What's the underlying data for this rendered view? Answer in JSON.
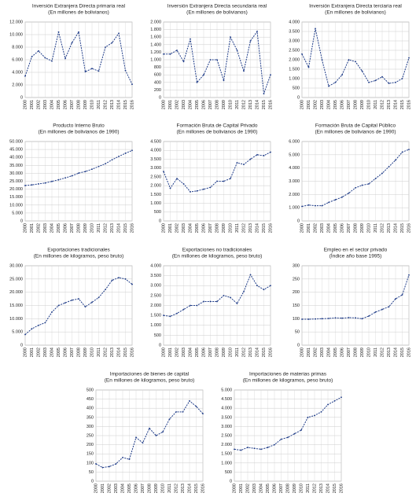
{
  "chart_data": [
    {
      "type": "line",
      "title": "Inversión Extranjera Directa primaria real",
      "subtitle": "(En millones de bolivianos)",
      "color": "#1f3c88",
      "grid": true,
      "x": [
        "2000",
        "2001",
        "2002",
        "2003",
        "2004",
        "2005",
        "2006",
        "2007",
        "2008",
        "2009",
        "2010",
        "2011",
        "2012",
        "2013",
        "2014",
        "2015",
        "2016"
      ],
      "values": [
        3400,
        6500,
        7400,
        6300,
        5800,
        10400,
        6200,
        8700,
        10400,
        4100,
        4600,
        4200,
        8000,
        8700,
        10200,
        4300,
        2100
      ],
      "ylim": [
        0,
        12000
      ],
      "yticks": [
        0,
        {
          "value": 2000,
          "label": "2.000"
        },
        {
          "value": 4000,
          "label": "4.000"
        },
        {
          "value": 6000,
          "label": "6.000"
        },
        {
          "value": 8000,
          "label": "8.000"
        },
        {
          "value": 10000,
          "label": "10.000"
        },
        {
          "value": 12000,
          "label": "12.000"
        }
      ]
    },
    {
      "type": "line",
      "title": "Inversión Extranjera Directa secundaria real",
      "subtitle": "(En millones de bolivianos)",
      "color": "#1f3c88",
      "grid": true,
      "x": [
        "2000",
        "2001",
        "2002",
        "2003",
        "2004",
        "2005",
        "2006",
        "2007",
        "2008",
        "2009",
        "2010",
        "2011",
        "2012",
        "2013",
        "2014",
        "2015",
        "2016"
      ],
      "values": [
        1150,
        1150,
        1250,
        950,
        1550,
        400,
        600,
        1000,
        1000,
        450,
        1600,
        1250,
        700,
        1500,
        1750,
        100,
        600
      ],
      "ylim": [
        0,
        2000
      ],
      "yticks": [
        0,
        200,
        400,
        600,
        800,
        {
          "value": 1000,
          "label": "1.000"
        },
        {
          "value": 1200,
          "label": "1.200"
        },
        {
          "value": 1400,
          "label": "1.400"
        },
        {
          "value": 1600,
          "label": "1.600"
        },
        {
          "value": 1800,
          "label": "1.800"
        },
        {
          "value": 2000,
          "label": "2.000"
        }
      ]
    },
    {
      "type": "line",
      "title": "Inversión Extranjera Directa terciaria real",
      "subtitle": "(En millones de bolivianos)",
      "color": "#1f3c88",
      "grid": true,
      "x": [
        "2000",
        "2001",
        "2002",
        "2003",
        "2004",
        "2005",
        "2006",
        "2007",
        "2008",
        "2009",
        "2010",
        "2011",
        "2012",
        "2013",
        "2014",
        "2015",
        "2016"
      ],
      "values": [
        2300,
        1600,
        3650,
        2000,
        600,
        800,
        1200,
        2000,
        1900,
        1400,
        800,
        900,
        1100,
        750,
        800,
        1000,
        2100
      ],
      "ylim": [
        0,
        4000
      ],
      "yticks": [
        0,
        500,
        {
          "value": 1000,
          "label": "1.000"
        },
        {
          "value": 1500,
          "label": "1.500"
        },
        {
          "value": 2000,
          "label": "2.000"
        },
        {
          "value": 2500,
          "label": "2.500"
        },
        {
          "value": 3000,
          "label": "3.000"
        },
        {
          "value": 3500,
          "label": "3.500"
        },
        {
          "value": 4000,
          "label": "4.000"
        }
      ]
    },
    {
      "type": "line",
      "title": "Producto Interno Bruto",
      "subtitle": "(En millones de bolivianos de 1990)",
      "color": "#1f3c88",
      "grid": true,
      "x": [
        "2000",
        "2001",
        "2002",
        "2003",
        "2004",
        "2005",
        "2006",
        "2007",
        "2008",
        "2009",
        "2010",
        "2011",
        "2012",
        "2013",
        "2014",
        "2015",
        "2016"
      ],
      "values": [
        22300,
        22700,
        23300,
        23900,
        24900,
        25900,
        27100,
        28400,
        30100,
        31100,
        32600,
        34300,
        36000,
        38500,
        40600,
        42600,
        44400
      ],
      "ylim": [
        0,
        50000
      ],
      "yticks": [
        0,
        {
          "value": 5000,
          "label": "5.000"
        },
        {
          "value": 10000,
          "label": "10.000"
        },
        {
          "value": 15000,
          "label": "15.000"
        },
        {
          "value": 20000,
          "label": "20.000"
        },
        {
          "value": 25000,
          "label": "25.000"
        },
        {
          "value": 30000,
          "label": "30.000"
        },
        {
          "value": 35000,
          "label": "35.000"
        },
        {
          "value": 40000,
          "label": "40.000"
        },
        {
          "value": 45000,
          "label": "45.000"
        },
        {
          "value": 50000,
          "label": "50.000"
        }
      ]
    },
    {
      "type": "line",
      "title": "Formación Bruta de Capital Privado",
      "subtitle": "(En millones de bolivianos de 1990)",
      "color": "#1f3c88",
      "grid": true,
      "x": [
        "2000",
        "2001",
        "2002",
        "2003",
        "2004",
        "2005",
        "2006",
        "2007",
        "2008",
        "2009",
        "2010",
        "2011",
        "2012",
        "2013",
        "2014",
        "2015",
        "2016"
      ],
      "values": [
        2800,
        1850,
        2400,
        2100,
        1650,
        1700,
        1800,
        1900,
        2250,
        2250,
        2400,
        3300,
        3200,
        3500,
        3750,
        3700,
        3900
      ],
      "ylim": [
        0,
        4500
      ],
      "yticks": [
        0,
        500,
        {
          "value": 1000,
          "label": "1.000"
        },
        {
          "value": 1500,
          "label": "1.500"
        },
        {
          "value": 2000,
          "label": "2.000"
        },
        {
          "value": 2500,
          "label": "2.500"
        },
        {
          "value": 3000,
          "label": "3.000"
        },
        {
          "value": 3500,
          "label": "3.500"
        },
        {
          "value": 4000,
          "label": "4.000"
        },
        {
          "value": 4500,
          "label": "4.500"
        }
      ]
    },
    {
      "type": "line",
      "title": "Formación Bruta de Capital Público",
      "subtitle": "(En millones de bolivianos de 1990)",
      "color": "#1f3c88",
      "grid": true,
      "x": [
        "2000",
        "2001",
        "2002",
        "2003",
        "2004",
        "2005",
        "2006",
        "2007",
        "2008",
        "2009",
        "2010",
        "2011",
        "2012",
        "2013",
        "2014",
        "2015",
        "2016"
      ],
      "values": [
        1100,
        1200,
        1150,
        1150,
        1400,
        1600,
        1800,
        2100,
        2500,
        2700,
        2800,
        3200,
        3600,
        4100,
        4600,
        5200,
        5400
      ],
      "ylim": [
        0,
        6000
      ],
      "yticks": [
        0,
        {
          "value": 1000,
          "label": "1.000"
        },
        {
          "value": 2000,
          "label": "2.000"
        },
        {
          "value": 3000,
          "label": "3.000"
        },
        {
          "value": 4000,
          "label": "4.000"
        },
        {
          "value": 5000,
          "label": "5.000"
        },
        {
          "value": 6000,
          "label": "6.000"
        }
      ]
    },
    {
      "type": "line",
      "title": "Exportaciones tradicionales",
      "subtitle": "(En millones de kilogramos, peso bruto)",
      "color": "#1f3c88",
      "grid": true,
      "x": [
        "2000",
        "2001",
        "2002",
        "2003",
        "2004",
        "2005",
        "2006",
        "2007",
        "2008",
        "2009",
        "2010",
        "2011",
        "2012",
        "2013",
        "2014",
        "2015",
        "2016"
      ],
      "values": [
        4000,
        6200,
        7500,
        8500,
        12500,
        15000,
        16000,
        17000,
        17500,
        14500,
        16200,
        18000,
        21000,
        24500,
        25500,
        25000,
        23000
      ],
      "ylim": [
        0,
        30000
      ],
      "yticks": [
        0,
        {
          "value": 5000,
          "label": "5.000"
        },
        {
          "value": 10000,
          "label": "10.000"
        },
        {
          "value": 15000,
          "label": "15.000"
        },
        {
          "value": 20000,
          "label": "20.000"
        },
        {
          "value": 25000,
          "label": "25.000"
        },
        {
          "value": 30000,
          "label": "30.000"
        }
      ]
    },
    {
      "type": "line",
      "title": "Exportaciones no tradicionales",
      "subtitle": "(En millones de kilogramos, peso bruto)",
      "color": "#1f3c88",
      "grid": true,
      "x": [
        "2000",
        "2001",
        "2002",
        "2003",
        "2004",
        "2005",
        "2006",
        "2007",
        "2008",
        "2009",
        "2010",
        "2011",
        "2012",
        "2013",
        "2014",
        "2015",
        "2016"
      ],
      "values": [
        1500,
        1450,
        1600,
        1800,
        2000,
        2000,
        2200,
        2200,
        2200,
        2500,
        2400,
        2100,
        2700,
        3550,
        3000,
        2800,
        3000
      ],
      "ylim": [
        0,
        4000
      ],
      "yticks": [
        0,
        500,
        {
          "value": 1000,
          "label": "1.000"
        },
        {
          "value": 1500,
          "label": "1.500"
        },
        {
          "value": 2000,
          "label": "2.000"
        },
        {
          "value": 2500,
          "label": "2.500"
        },
        {
          "value": 3000,
          "label": "3.000"
        },
        {
          "value": 3500,
          "label": "3.500"
        },
        {
          "value": 4000,
          "label": "4.000"
        }
      ]
    },
    {
      "type": "line",
      "title": "Empleo en el sector privado",
      "subtitle": "(Índice año base 1995)",
      "color": "#1f3c88",
      "grid": true,
      "x": [
        "2000",
        "2001",
        "2002",
        "2003",
        "2004",
        "2005",
        "2006",
        "2007",
        "2008",
        "2009",
        "2010",
        "2011",
        "2012",
        "2013",
        "2014",
        "2015",
        "2016"
      ],
      "values": [
        98,
        98,
        99,
        100,
        101,
        103,
        102,
        104,
        103,
        100,
        110,
        125,
        135,
        145,
        175,
        190,
        265
      ],
      "ylim": [
        0,
        300
      ],
      "yticks": [
        0,
        50,
        100,
        150,
        200,
        250,
        300
      ]
    },
    {
      "type": "line",
      "title": "Importaciones de bienes de capital",
      "subtitle": "(En millones de kilogramos, peso bruto)",
      "color": "#1f3c88",
      "grid": true,
      "x": [
        "2000",
        "2001",
        "2002",
        "2003",
        "2004",
        "2005",
        "2006",
        "2007",
        "2008",
        "2009",
        "2010",
        "2011",
        "2012",
        "2013",
        "2014",
        "2015",
        "2016"
      ],
      "values": [
        95,
        75,
        80,
        95,
        130,
        120,
        240,
        210,
        290,
        250,
        270,
        340,
        380,
        380,
        440,
        410,
        370
      ],
      "ylim": [
        0,
        500
      ],
      "yticks": [
        0,
        50,
        100,
        150,
        200,
        250,
        300,
        350,
        400,
        450,
        500
      ]
    },
    {
      "type": "line",
      "title": "Importaciones de materias primas",
      "subtitle": "(En millones de kilogramos, peso bruto)",
      "color": "#1f3c88",
      "grid": true,
      "x": [
        "2000",
        "2001",
        "2002",
        "2003",
        "2004",
        "2005",
        "2006",
        "2007",
        "2008",
        "2009",
        "2010",
        "2011",
        "2012",
        "2013",
        "2014",
        "2015",
        "2016"
      ],
      "values": [
        1750,
        1700,
        1850,
        1800,
        1750,
        1850,
        2000,
        2300,
        2400,
        2600,
        2800,
        3500,
        3600,
        3800,
        4200,
        4400,
        4600
      ],
      "ylim": [
        0,
        5000
      ],
      "yticks": [
        0,
        500,
        {
          "value": 1000,
          "label": "1.000"
        },
        {
          "value": 1500,
          "label": "1.500"
        },
        {
          "value": 2000,
          "label": "2.000"
        },
        {
          "value": 2500,
          "label": "2.500"
        },
        {
          "value": 3000,
          "label": "3.000"
        },
        {
          "value": 3500,
          "label": "3.500"
        },
        {
          "value": 4000,
          "label": "4.000"
        },
        {
          "value": 4500,
          "label": "4.500"
        },
        {
          "value": 5000,
          "label": "5.000"
        }
      ]
    }
  ]
}
